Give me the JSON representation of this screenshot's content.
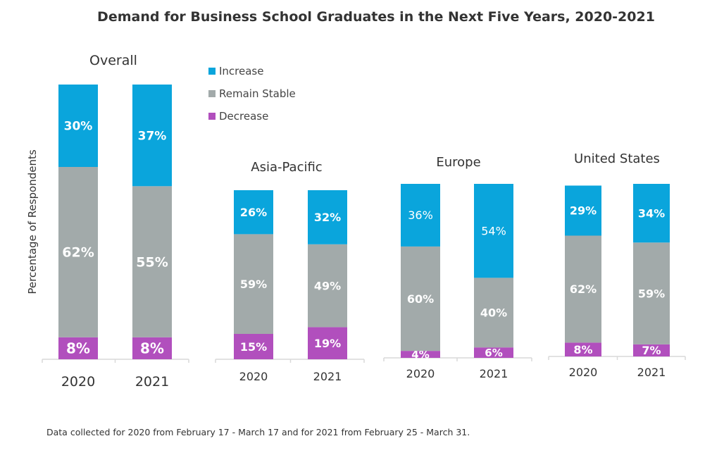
{
  "title": "Demand for Business School Graduates in the Next Five Years, 2020-2021",
  "ylabel": "Percentage of Respondents",
  "footnote": "Data collected for 2020 from February 17 - March 17 and for 2021 from February 25 - March 31.",
  "legend": [
    {
      "name": "Increase",
      "color": "#0aa5dc"
    },
    {
      "name": "Remain Stable",
      "color": "#a2aaaa"
    },
    {
      "name": "Decrease",
      "color": "#b14fbd"
    }
  ],
  "chart_data": [
    {
      "type": "bar",
      "stacked": true,
      "title": "Overall",
      "categories": [
        "2020",
        "2021"
      ],
      "series": [
        {
          "name": "Decrease",
          "values": [
            8,
            8
          ],
          "labels": [
            "8%",
            "8%"
          ]
        },
        {
          "name": "Remain Stable",
          "values": [
            62,
            55
          ],
          "labels": [
            "62%",
            "55%"
          ]
        },
        {
          "name": "Increase",
          "values": [
            30,
            37
          ],
          "labels": [
            "30%",
            "37%"
          ]
        }
      ]
    },
    {
      "type": "bar",
      "stacked": true,
      "title": "Asia-Pacific",
      "categories": [
        "2020",
        "2021"
      ],
      "series": [
        {
          "name": "Decrease",
          "values": [
            15,
            19
          ],
          "labels": [
            "15%",
            "19%"
          ]
        },
        {
          "name": "Remain Stable",
          "values": [
            59,
            49
          ],
          "labels": [
            "59%",
            "49%"
          ]
        },
        {
          "name": "Increase",
          "values": [
            26,
            32
          ],
          "labels": [
            "26%",
            "32%"
          ]
        }
      ]
    },
    {
      "type": "bar",
      "stacked": true,
      "title": "Europe",
      "categories": [
        "2020",
        "2021"
      ],
      "series": [
        {
          "name": "Decrease",
          "values": [
            4,
            6
          ],
          "labels": [
            "4%",
            "6%"
          ]
        },
        {
          "name": "Remain Stable",
          "values": [
            60,
            40
          ],
          "labels": [
            "60%",
            "40%"
          ]
        },
        {
          "name": "Increase",
          "values": [
            36,
            54
          ],
          "labels": [
            "36%",
            "54%"
          ]
        }
      ]
    },
    {
      "type": "bar",
      "stacked": true,
      "title": "United States",
      "categories": [
        "2020",
        "2021"
      ],
      "series": [
        {
          "name": "Decrease",
          "values": [
            8,
            7
          ],
          "labels": [
            "8%",
            "7%"
          ]
        },
        {
          "name": "Remain Stable",
          "values": [
            62,
            59
          ],
          "labels": [
            "62%",
            "59%"
          ]
        },
        {
          "name": "Increase",
          "values": [
            29,
            34
          ],
          "labels": [
            "29%",
            "34%"
          ]
        }
      ]
    }
  ]
}
